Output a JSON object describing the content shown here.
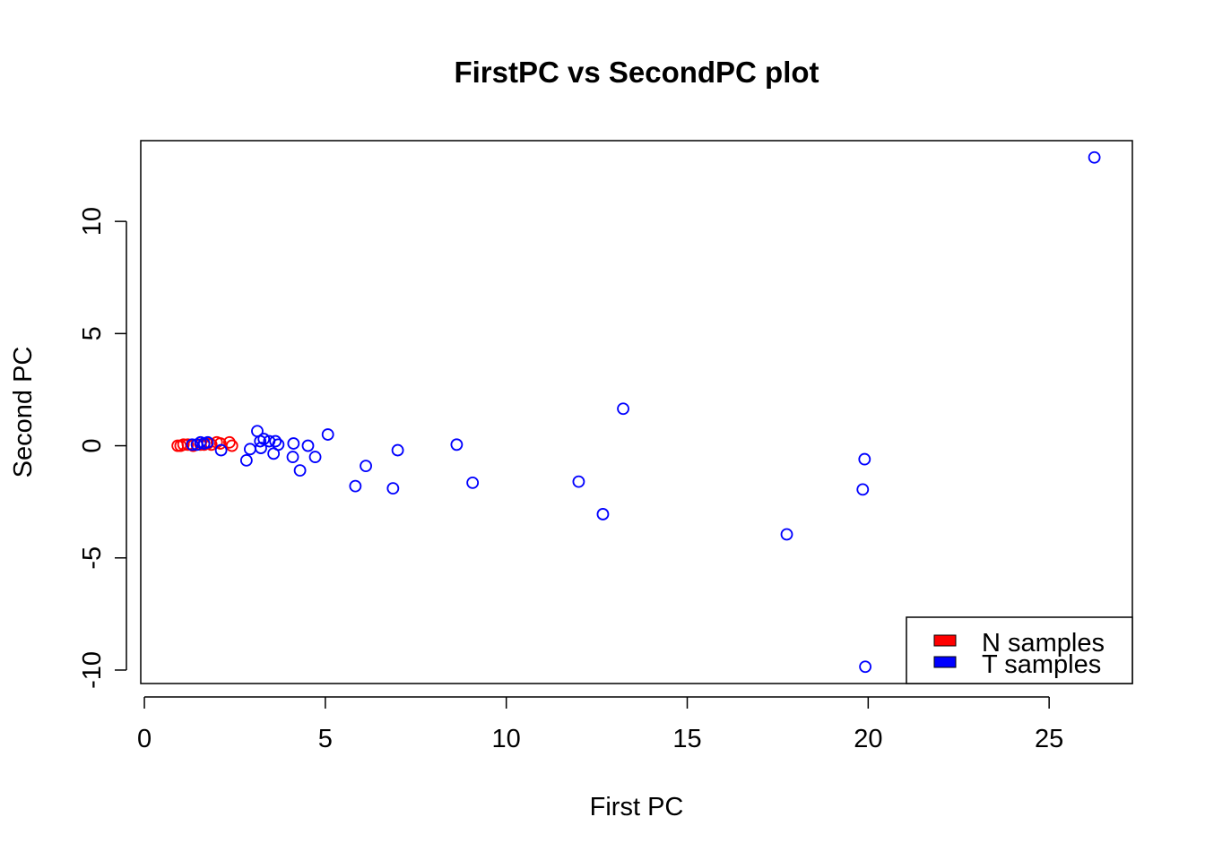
{
  "chart_data": {
    "type": "scatter",
    "title": "FirstPC vs SecondPC plot",
    "xlabel": "First PC",
    "ylabel": "Second PC",
    "xlim": [
      -0.1,
      27.3
    ],
    "ylim": [
      -10.6,
      13.6
    ],
    "x_ticks": [
      0,
      5,
      10,
      15,
      20,
      25
    ],
    "y_ticks": [
      -10,
      -5,
      0,
      5,
      10
    ],
    "grid": false,
    "legend_position": "bottom-right",
    "series": [
      {
        "name": "N samples",
        "color": "#ff0000",
        "marker": "open-circle",
        "points": [
          [
            0.92,
            0.0
          ],
          [
            1.0,
            0.0
          ],
          [
            1.08,
            0.05
          ],
          [
            1.2,
            0.05
          ],
          [
            1.35,
            0.0
          ],
          [
            1.55,
            0.05
          ],
          [
            1.65,
            0.05
          ],
          [
            1.75,
            0.1
          ],
          [
            1.85,
            0.05
          ],
          [
            2.0,
            0.15
          ],
          [
            2.1,
            0.1
          ],
          [
            2.35,
            0.15
          ],
          [
            2.42,
            0.0
          ]
        ]
      },
      {
        "name": "T samples",
        "color": "#0000ff",
        "marker": "open-circle",
        "points": [
          [
            1.32,
            0.05
          ],
          [
            1.45,
            0.05
          ],
          [
            1.55,
            0.15
          ],
          [
            1.65,
            0.1
          ],
          [
            1.75,
            0.15
          ],
          [
            2.12,
            -0.2
          ],
          [
            2.82,
            -0.65
          ],
          [
            2.92,
            -0.15
          ],
          [
            3.12,
            0.65
          ],
          [
            3.2,
            0.2
          ],
          [
            3.22,
            -0.1
          ],
          [
            3.3,
            0.3
          ],
          [
            3.45,
            0.2
          ],
          [
            3.57,
            -0.35
          ],
          [
            3.62,
            0.2
          ],
          [
            3.7,
            0.05
          ],
          [
            4.1,
            -0.5
          ],
          [
            4.12,
            0.1
          ],
          [
            4.3,
            -1.1
          ],
          [
            4.52,
            0.0
          ],
          [
            4.72,
            -0.5
          ],
          [
            5.07,
            0.5
          ],
          [
            5.83,
            -1.8
          ],
          [
            6.12,
            -0.9
          ],
          [
            6.87,
            -1.9
          ],
          [
            7.0,
            -0.2
          ],
          [
            8.63,
            0.05
          ],
          [
            9.07,
            -1.65
          ],
          [
            12.0,
            -1.6
          ],
          [
            12.67,
            -3.05
          ],
          [
            13.23,
            1.65
          ],
          [
            17.75,
            -3.95
          ],
          [
            19.85,
            -1.95
          ],
          [
            19.9,
            -0.6
          ],
          [
            19.92,
            -9.85
          ],
          [
            26.25,
            12.85
          ]
        ]
      }
    ]
  }
}
